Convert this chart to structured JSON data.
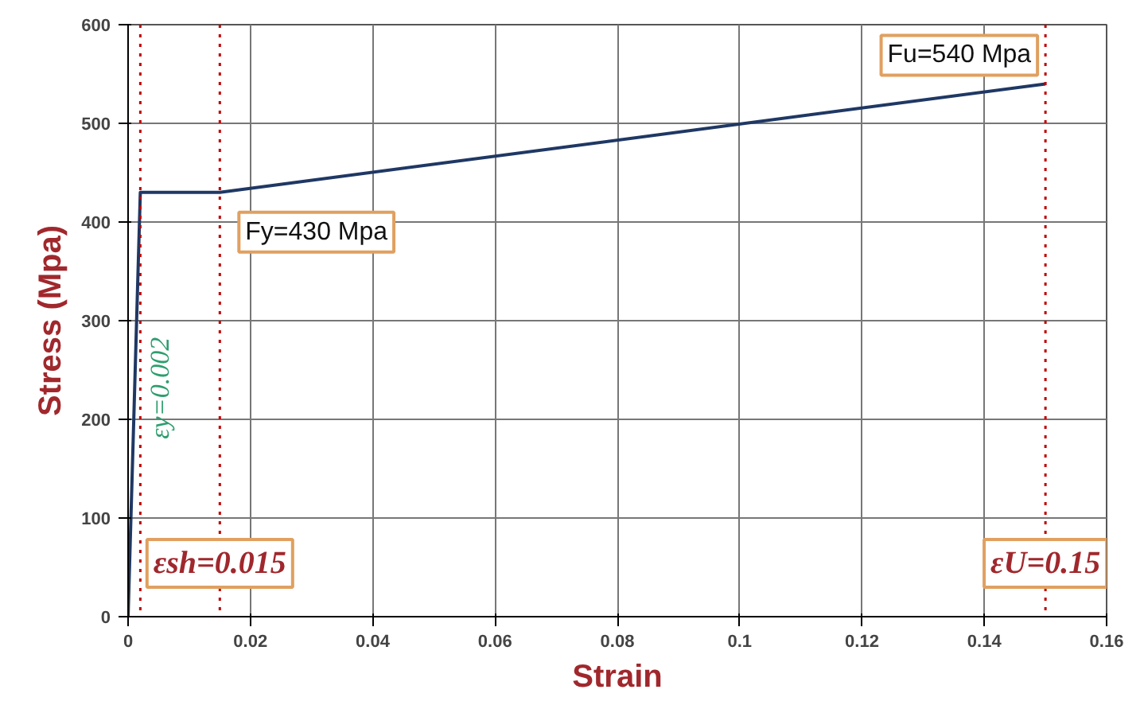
{
  "chart_data": {
    "type": "line",
    "xlabel": "Strain",
    "ylabel": "Stress (Mpa)",
    "x": [
      0,
      0.002,
      0.015,
      0.15
    ],
    "series": [
      {
        "color": "#1f3864",
        "values": [
          0,
          430,
          430,
          540
        ]
      }
    ],
    "xlim": [
      0,
      0.16
    ],
    "xticks": [
      0,
      0.02,
      0.04,
      0.06,
      0.08,
      0.1,
      0.12,
      0.14,
      0.16
    ],
    "ylim": [
      0,
      600
    ],
    "yticks": [
      0,
      100,
      200,
      300,
      400,
      500,
      600
    ],
    "grid": true,
    "marker": "none",
    "line_style": "solid",
    "ref_lines": [
      {
        "axis": "x",
        "value": 0.002,
        "label": "εy=0.002",
        "color": "#c00000",
        "line_style": "dotted"
      },
      {
        "axis": "x",
        "value": 0.015,
        "label": "εsh=0.015",
        "color": "#c00000",
        "line_style": "dotted"
      },
      {
        "axis": "x",
        "value": 0.15,
        "label": "εU=0.15",
        "color": "#c00000",
        "line_style": "dotted"
      }
    ],
    "annotations": [
      {
        "text": "Fy=430 Mpa",
        "x": 0.015,
        "y": 430
      },
      {
        "text": "Fu=540 Mpa",
        "x": 0.15,
        "y": 540
      }
    ]
  }
}
